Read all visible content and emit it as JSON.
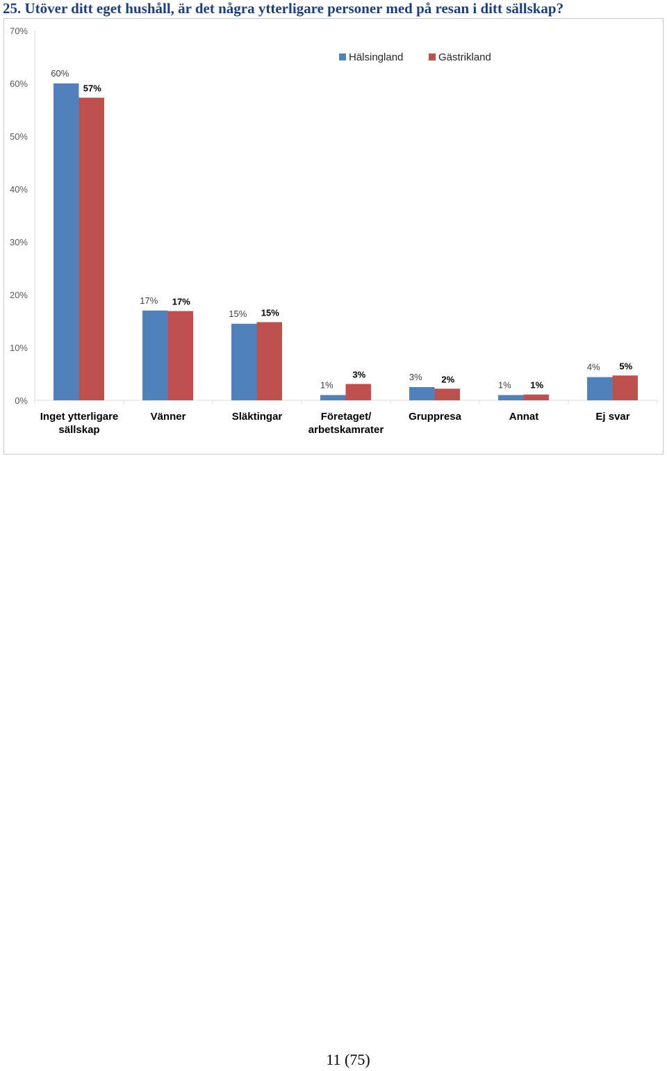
{
  "heading": "25. Utöver ditt eget hushåll, är det några ytterligare personer med på resan i ditt sällskap?",
  "page_number": "11 (75)",
  "chart_data": {
    "type": "bar",
    "categories": [
      [
        "Inget ytterligare",
        "sällskap"
      ],
      [
        "Vänner"
      ],
      [
        "Släktingar"
      ],
      [
        "Företaget/",
        "arbetskamrater"
      ],
      [
        "Gruppresa"
      ],
      [
        "Annat"
      ],
      [
        "Ej svar"
      ]
    ],
    "series": [
      {
        "name": "Hälsingland",
        "color": "#4f81bd",
        "values": [
          60,
          17,
          14.5,
          1,
          2.5,
          1,
          4.4
        ],
        "labels": [
          "60%",
          "17%",
          "15%",
          "1%",
          "3%",
          "1%",
          "4%"
        ]
      },
      {
        "name": "Gästrikland",
        "color": "#c0504d",
        "values": [
          57.3,
          16.9,
          14.8,
          3.1,
          2.2,
          1.1,
          4.7
        ],
        "labels": [
          "57%",
          "17%",
          "15%",
          "3%",
          "2%",
          "1%",
          "5%"
        ]
      }
    ],
    "yticks": [
      "0%",
      "10%",
      "20%",
      "30%",
      "40%",
      "50%",
      "60%",
      "70%"
    ],
    "ylim": [
      0,
      70
    ],
    "legend_position": "top-right",
    "grid": false
  }
}
